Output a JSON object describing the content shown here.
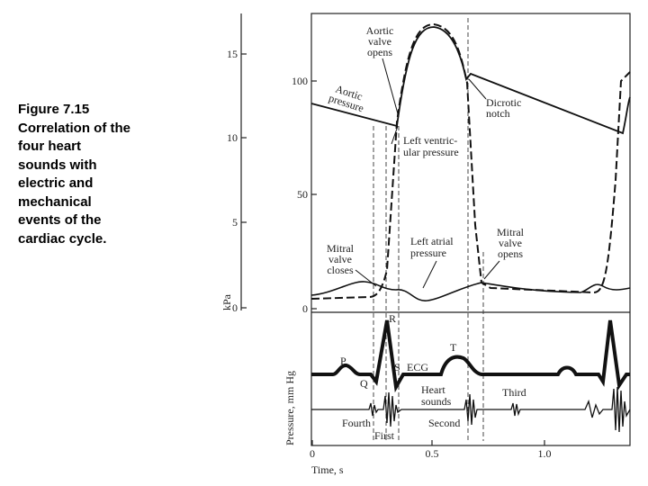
{
  "caption": [
    "Figure 7.15",
    "Correlation of the",
    "four heart",
    "sounds with",
    "electric and",
    "mechanical",
    "events of the",
    "cardiac cycle."
  ],
  "figure": {
    "kpa_ticks": [
      "15",
      "10",
      "5",
      "0"
    ],
    "kpa_label": "kPa",
    "mmhg_ticks": [
      "100",
      "50",
      "0"
    ],
    "mmhg_label": "Pressure, mm Hg",
    "time_ticks": [
      "0",
      "0.5",
      "1.0"
    ],
    "time_label": "Time, s",
    "labels": {
      "aortic_valve_opens": [
        "Aortic",
        "valve",
        "opens"
      ],
      "aortic_pressure": [
        "Aortic",
        "pressure"
      ],
      "dicrotic_notch": [
        "Dicrotic",
        "notch"
      ],
      "lv_pressure": [
        "Left ventric-",
        "ular pressure"
      ],
      "mitral_valve_closes": [
        "Mitral",
        "valve",
        "closes"
      ],
      "left_atrial_pressure": [
        "Left atrial",
        "pressure"
      ],
      "mitral_valve_opens": [
        "Mitral",
        "valve",
        "opens"
      ],
      "r": "R",
      "p": "P",
      "q": "Q",
      "s": "S",
      "t": "T",
      "ecg": "ECG",
      "heart_sounds": [
        "Heart",
        "sounds"
      ],
      "third": "Third",
      "fourth": "Fourth",
      "first": "First",
      "second": "Second"
    }
  }
}
